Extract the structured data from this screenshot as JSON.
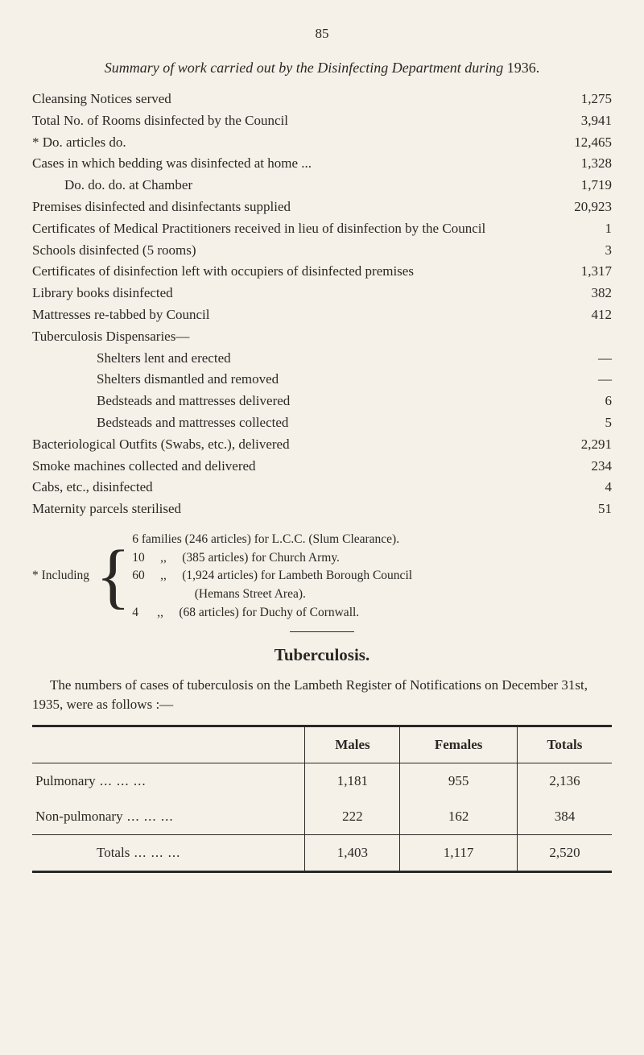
{
  "page_number": "85",
  "title_italic": "Summary of work carried out by the Disinfecting Department during ",
  "title_year": "1936.",
  "rows": [
    {
      "label": "Cleansing Notices served",
      "value": "1,275",
      "indent": 0
    },
    {
      "label": "Total No. of Rooms disinfected by the Council",
      "value": "3,941",
      "indent": 0
    },
    {
      "label": "*    Do.    articles               do.",
      "value": "12,465",
      "indent": 0
    },
    {
      "label": "Cases in which bedding was disinfected at home ...",
      "value": "1,328",
      "indent": 0
    },
    {
      "label": "Do.              do.               do.            at Chamber",
      "value": "1,719",
      "indent": 1
    },
    {
      "label": "Premises disinfected and disinfectants supplied",
      "value": "20,923",
      "indent": 0
    },
    {
      "label": "Certificates of Medical Practitioners received in lieu of disinfection by the Council",
      "value": "1",
      "indent": 0
    },
    {
      "label": "Schools disinfected (5 rooms)",
      "value": "3",
      "indent": 0
    },
    {
      "label": "Certificates of disinfection left with occupiers of disinfected premises",
      "value": "1,317",
      "indent": 0
    },
    {
      "label": "Library books disinfected",
      "value": "382",
      "indent": 0
    },
    {
      "label": "Mattresses re-tabbed by Council",
      "value": "412",
      "indent": 0
    },
    {
      "label": "Tuberculosis Dispensaries—",
      "value": "",
      "indent": 0
    },
    {
      "label": "Shelters lent and erected",
      "value": "—",
      "indent": 2
    },
    {
      "label": "Shelters dismantled and removed",
      "value": "—",
      "indent": 2
    },
    {
      "label": "Bedsteads and mattresses delivered",
      "value": "6",
      "indent": 2
    },
    {
      "label": "Bedsteads and mattresses collected",
      "value": "5",
      "indent": 2
    },
    {
      "label": "Bacteriological Outfits (Swabs, etc.), delivered",
      "value": "2,291",
      "indent": 0
    },
    {
      "label": "Smoke machines collected and delivered",
      "value": "234",
      "indent": 0
    },
    {
      "label": "Cabs, etc., disinfected",
      "value": "4",
      "indent": 0
    },
    {
      "label": "Maternity parcels sterilised",
      "value": "51",
      "indent": 0
    }
  ],
  "footnote": {
    "label": "* Including",
    "lines": [
      "6 families (246 articles) for L.C.C. (Slum Clearance).",
      "10     ,,     (385 articles) for Church Army.",
      "60     ,,     (1,924 articles) for Lambeth Borough Council",
      "                    (Hemans Street Area).",
      "4      ,,     (68 articles) for Duchy of Cornwall."
    ]
  },
  "section_heading": "Tuberculosis.",
  "para": "The numbers of cases of tuberculosis on the Lambeth Register of Notifications on December 31st, 1935, were as follows :—",
  "table": {
    "headers": [
      "",
      "Males",
      "Females",
      "Totals"
    ],
    "rows": [
      {
        "label": "Pulmonary",
        "males": "1,181",
        "females": "955",
        "totals": "2,136"
      },
      {
        "label": "Non-pulmonary",
        "males": "222",
        "females": "162",
        "totals": "384"
      }
    ],
    "totals": {
      "label": "Totals",
      "males": "1,403",
      "females": "1,117",
      "totals": "2,520"
    }
  }
}
